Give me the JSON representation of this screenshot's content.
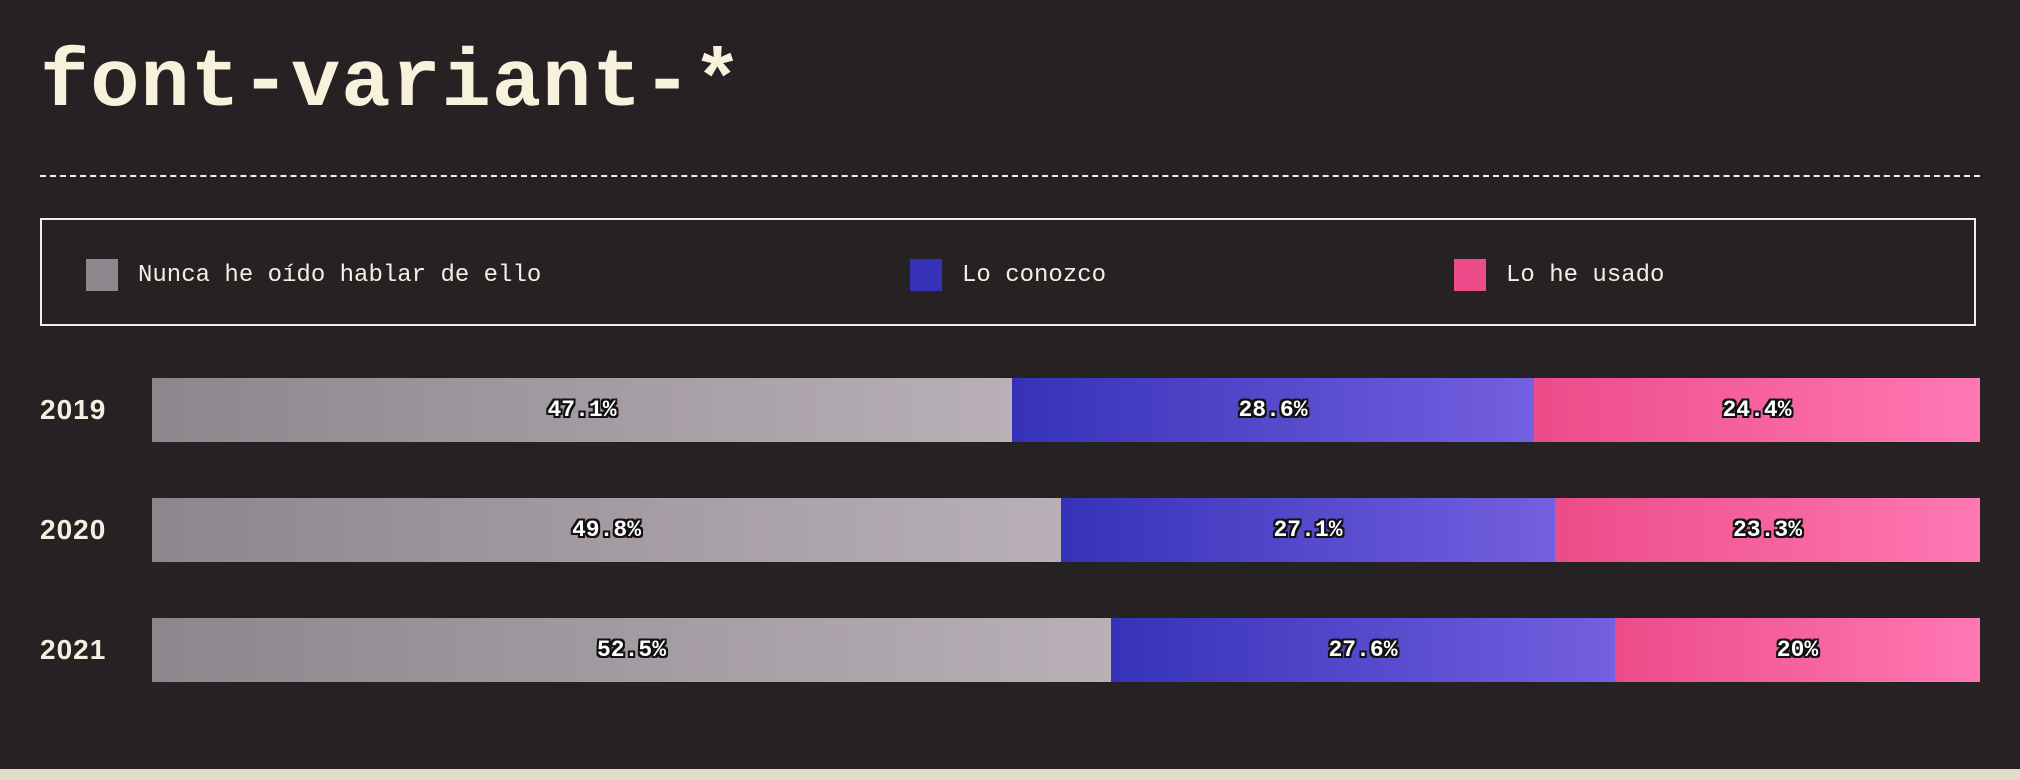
{
  "header": {
    "title": "font-variant-*"
  },
  "colors": {
    "background": "#262224",
    "text": "#f5efe1",
    "never_heard": "#8e868d",
    "never_heard_end": "#b8b0b6",
    "know_it": "#3632b8",
    "know_it_end": "#7460e0",
    "used_it": "#ec4c89",
    "used_it_end": "#ff78b4"
  },
  "chart_data": {
    "type": "bar",
    "orientation": "horizontal",
    "stacked": true,
    "normalized": true,
    "title": "font-variant-*",
    "categories": [
      "2019",
      "2020",
      "2021"
    ],
    "series": [
      {
        "name": "Nunca he oído hablar de ello",
        "values": [
          47.1,
          49.8,
          52.5
        ],
        "labels": [
          "47.1%",
          "49.8%",
          "52.5%"
        ]
      },
      {
        "name": "Lo conozco",
        "values": [
          28.6,
          27.1,
          27.6
        ],
        "labels": [
          "28.6%",
          "27.1%",
          "27.6%"
        ]
      },
      {
        "name": "Lo he usado",
        "values": [
          24.4,
          23.3,
          20
        ],
        "labels": [
          "24.4%",
          "23.3%",
          "20%"
        ]
      }
    ],
    "xlim": [
      0,
      100
    ],
    "legend": "top",
    "grid": false
  }
}
